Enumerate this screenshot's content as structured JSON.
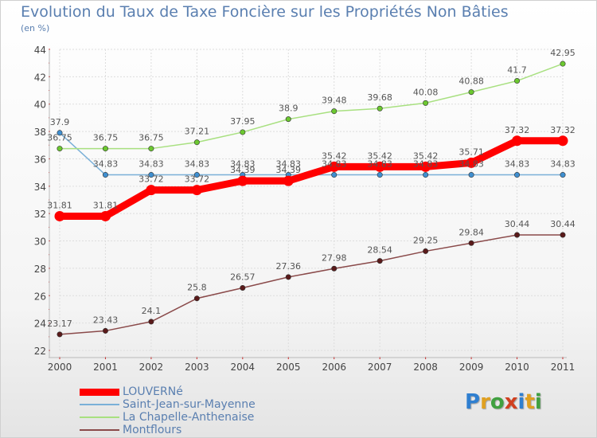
{
  "title": "Evolution du Taux de Taxe Foncière sur les Propriétés Non Bâties",
  "subtitle": "(en %)",
  "logo": {
    "text": "Proxiti",
    "letters": [
      {
        "ch": "P",
        "color": "#2f7fd0"
      },
      {
        "ch": "r",
        "color": "#e0a020"
      },
      {
        "ch": "o",
        "color": "#40a040"
      },
      {
        "ch": "x",
        "color": "#d04020"
      },
      {
        "ch": "i",
        "color": "#2f7fd0"
      },
      {
        "ch": "t",
        "color": "#e0a020"
      },
      {
        "ch": "i",
        "color": "#40a040"
      }
    ]
  },
  "chart_data": {
    "type": "line",
    "title": "Evolution du Taux de Taxe Foncière sur les Propriétés Non Bâties",
    "ylabel": "(en %)",
    "xlabel": "",
    "categories": [
      "2000",
      "2001",
      "2002",
      "2003",
      "2004",
      "2005",
      "2006",
      "2007",
      "2008",
      "2009",
      "2010",
      "2011"
    ],
    "ylim": [
      22,
      44
    ],
    "yticks": [
      22,
      24,
      26,
      28,
      30,
      32,
      34,
      36,
      38,
      40,
      42,
      44
    ],
    "grid": true,
    "series": [
      {
        "name": "LOUVERNé",
        "color": "#ff0000",
        "marker": "#ff0000",
        "emphasis": true,
        "values": [
          31.81,
          31.81,
          33.72,
          33.72,
          34.39,
          34.39,
          35.42,
          35.42,
          35.42,
          35.71,
          37.32,
          37.32
        ],
        "labels": [
          "31.81",
          "31.81",
          "33.72",
          "33.72",
          "34.39",
          "34.39",
          "35.42",
          "35.42",
          "35.42",
          "35.71",
          "37.32",
          "37.32"
        ]
      },
      {
        "name": "Saint-Jean-sur-Mayenne",
        "color": "#7ab0d8",
        "marker": "#3f8fd0",
        "emphasis": false,
        "values": [
          37.9,
          34.83,
          34.83,
          34.83,
          34.83,
          34.83,
          34.83,
          34.83,
          34.83,
          34.83,
          34.83,
          34.83
        ],
        "labels": [
          "37.9",
          "34.83",
          "34.83",
          "34.83",
          "34.83",
          "34.83",
          "34.83",
          "34.83",
          "34.83",
          "34.83",
          "34.83",
          "34.83"
        ]
      },
      {
        "name": "La Chapelle-Anthenaise",
        "color": "#a8e080",
        "marker": "#6cc830",
        "emphasis": false,
        "values": [
          36.75,
          36.75,
          36.75,
          37.21,
          37.95,
          38.9,
          39.48,
          39.68,
          40.08,
          40.88,
          41.7,
          42.95
        ],
        "labels": [
          "36.75",
          "36.75",
          "36.75",
          "37.21",
          "37.95",
          "38.9",
          "39.48",
          "39.68",
          "40.08",
          "40.88",
          "41.7",
          "42.95"
        ]
      },
      {
        "name": "Montflours",
        "color": "#8a4a4a",
        "marker": "#5a1a1a",
        "emphasis": false,
        "values": [
          23.17,
          23.43,
          24.1,
          25.8,
          26.57,
          27.36,
          27.98,
          28.54,
          29.25,
          29.84,
          30.44,
          30.44
        ],
        "labels": [
          "23.17",
          "23.43",
          "24.1",
          "25.8",
          "26.57",
          "27.36",
          "27.98",
          "28.54",
          "29.25",
          "29.84",
          "30.44",
          "30.44"
        ]
      }
    ],
    "legend_position": "bottom-left"
  }
}
